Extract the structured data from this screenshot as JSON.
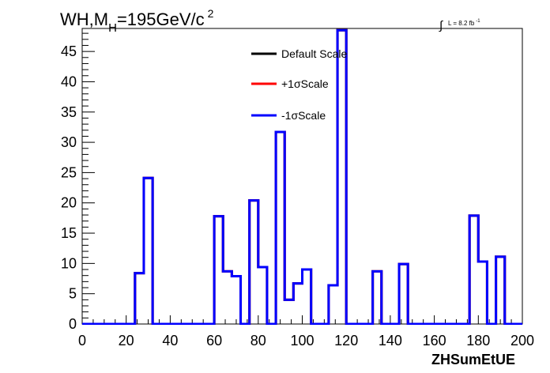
{
  "chart_data": {
    "type": "line",
    "title_main": "WH,M",
    "title_sub": "H",
    "title_rest": "=195GeV/c",
    "title_sup": "2",
    "lumi_text": "L = 8.2 fb",
    "lumi_sup": "-1",
    "xlabel": "ZHSumEtUE",
    "ylabel": "",
    "xlim": [
      0,
      200
    ],
    "ylim": [
      0,
      48.8
    ],
    "x_ticks": [
      0,
      20,
      40,
      60,
      80,
      100,
      120,
      140,
      160,
      180,
      200
    ],
    "y_ticks": [
      0,
      5,
      10,
      15,
      20,
      25,
      30,
      35,
      40,
      45
    ],
    "bin_width": 4,
    "legend_position": "top-center",
    "series": [
      {
        "name": "Default Scale",
        "color": "#000000",
        "values": [
          0,
          0,
          0,
          0,
          0,
          0,
          8.4,
          24.1,
          0,
          0,
          0,
          0,
          0,
          0,
          0,
          17.8,
          8.7,
          7.9,
          0,
          20.4,
          9.4,
          0,
          31.7,
          4.0,
          6.7,
          9.0,
          0,
          0,
          6.4,
          48.5,
          0,
          0,
          0,
          8.7,
          0,
          0,
          9.9,
          0,
          0,
          0,
          0,
          0,
          0,
          0,
          17.9,
          10.3,
          0,
          11.1,
          0,
          0
        ]
      },
      {
        "name": "+1σScale",
        "color": "#ff0000",
        "values": [
          0,
          0,
          0,
          0,
          0,
          0,
          8.4,
          24.1,
          0,
          0,
          0,
          0,
          0,
          0,
          0,
          17.8,
          8.7,
          7.9,
          0,
          20.4,
          9.4,
          0,
          31.7,
          4.0,
          6.7,
          9.0,
          0,
          0,
          6.4,
          48.5,
          0,
          0,
          0,
          8.7,
          0,
          0,
          9.9,
          0,
          0,
          0,
          0,
          0,
          0,
          0,
          17.9,
          10.3,
          0,
          11.1,
          0,
          0
        ]
      },
      {
        "name": "-1σScale",
        "color": "#0000ff",
        "values": [
          0,
          0,
          0,
          0,
          0,
          0,
          8.4,
          24.1,
          0,
          0,
          0,
          0,
          0,
          0,
          0,
          17.8,
          8.7,
          7.9,
          0,
          20.4,
          9.4,
          0,
          31.7,
          4.0,
          6.7,
          9.0,
          0,
          0,
          6.4,
          48.5,
          0,
          0,
          0,
          8.7,
          0,
          0,
          9.9,
          0,
          0,
          0,
          0,
          0,
          0,
          0,
          17.9,
          10.3,
          0,
          11.1,
          0,
          0
        ]
      }
    ]
  }
}
